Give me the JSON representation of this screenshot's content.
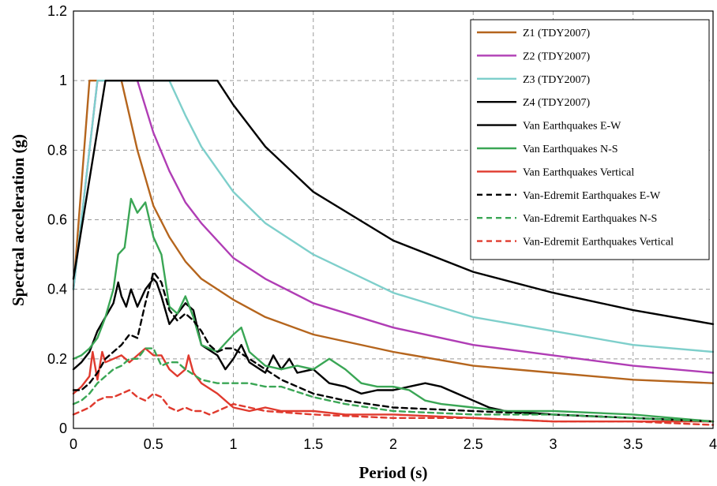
{
  "chart_data": {
    "type": "line",
    "xlabel": "Period (s)",
    "ylabel": "Spectral acceleration (g)",
    "xlim": [
      0,
      4
    ],
    "ylim": [
      0,
      1.2
    ],
    "xticks": [
      "0",
      "0.5",
      "1",
      "1.5",
      "2",
      "2.5",
      "3",
      "3.5",
      "4"
    ],
    "yticks": [
      "0",
      "0.2",
      "0.4",
      "0.6",
      "0.8",
      "1",
      "1.2"
    ],
    "grid": true,
    "legend_position": "top-right",
    "series": [
      {
        "name": "Z1 (TDY2007)",
        "color": "#b5651d",
        "dash": "solid",
        "x": [
          0,
          0.1,
          0.3,
          0.4,
          0.5,
          0.6,
          0.7,
          0.8,
          1.0,
          1.2,
          1.5,
          2.0,
          2.5,
          3.0,
          3.5,
          4.0
        ],
        "y": [
          0.4,
          1.0,
          1.0,
          0.8,
          0.64,
          0.55,
          0.48,
          0.43,
          0.37,
          0.32,
          0.27,
          0.22,
          0.18,
          0.16,
          0.14,
          0.13
        ]
      },
      {
        "name": "Z2 (TDY2007)",
        "color": "#b03db5",
        "dash": "solid",
        "x": [
          0,
          0.15,
          0.4,
          0.5,
          0.6,
          0.7,
          0.8,
          1.0,
          1.2,
          1.5,
          2.0,
          2.5,
          3.0,
          3.5,
          4.0
        ],
        "y": [
          0.4,
          1.0,
          1.0,
          0.85,
          0.74,
          0.65,
          0.59,
          0.49,
          0.43,
          0.36,
          0.29,
          0.24,
          0.21,
          0.18,
          0.16
        ]
      },
      {
        "name": "Z3 (TDY2007)",
        "color": "#7ecfcb",
        "dash": "solid",
        "x": [
          0,
          0.15,
          0.6,
          0.7,
          0.8,
          1.0,
          1.2,
          1.5,
          2.0,
          2.5,
          3.0,
          3.5,
          4.0
        ],
        "y": [
          0.4,
          1.0,
          1.0,
          0.9,
          0.81,
          0.68,
          0.59,
          0.5,
          0.39,
          0.32,
          0.28,
          0.24,
          0.22
        ]
      },
      {
        "name": "Z4 (TDY2007)",
        "color": "#000000",
        "dash": "solid",
        "x": [
          0,
          0.2,
          0.9,
          1.0,
          1.2,
          1.5,
          2.0,
          2.5,
          3.0,
          3.5,
          4.0
        ],
        "y": [
          0.43,
          1.0,
          1.0,
          0.93,
          0.81,
          0.68,
          0.54,
          0.45,
          0.39,
          0.34,
          0.3
        ]
      },
      {
        "name": "Van Earthquakes E-W",
        "color": "#000000",
        "dash": "solid",
        "x": [
          0,
          0.05,
          0.1,
          0.15,
          0.2,
          0.25,
          0.28,
          0.3,
          0.33,
          0.36,
          0.4,
          0.45,
          0.5,
          0.52,
          0.55,
          0.6,
          0.65,
          0.7,
          0.75,
          0.8,
          0.9,
          0.95,
          1.0,
          1.05,
          1.1,
          1.2,
          1.25,
          1.3,
          1.35,
          1.4,
          1.5,
          1.6,
          1.7,
          1.8,
          1.9,
          2.0,
          2.1,
          2.2,
          2.3,
          2.4,
          2.5,
          2.6,
          2.7,
          3.0,
          3.5,
          4.0
        ],
        "y": [
          0.17,
          0.19,
          0.22,
          0.28,
          0.32,
          0.36,
          0.42,
          0.38,
          0.35,
          0.4,
          0.35,
          0.4,
          0.43,
          0.42,
          0.38,
          0.3,
          0.33,
          0.36,
          0.34,
          0.24,
          0.21,
          0.17,
          0.2,
          0.24,
          0.19,
          0.16,
          0.21,
          0.17,
          0.2,
          0.16,
          0.17,
          0.13,
          0.12,
          0.1,
          0.11,
          0.11,
          0.12,
          0.13,
          0.12,
          0.1,
          0.08,
          0.06,
          0.05,
          0.04,
          0.03,
          0.02
        ]
      },
      {
        "name": "Van Earthquakes N-S",
        "color": "#3aa655",
        "dash": "solid",
        "x": [
          0,
          0.05,
          0.1,
          0.15,
          0.2,
          0.25,
          0.28,
          0.32,
          0.36,
          0.4,
          0.45,
          0.5,
          0.55,
          0.6,
          0.65,
          0.7,
          0.75,
          0.8,
          0.9,
          1.0,
          1.05,
          1.1,
          1.2,
          1.3,
          1.4,
          1.5,
          1.6,
          1.7,
          1.8,
          1.9,
          2.0,
          2.1,
          2.2,
          2.3,
          2.5,
          2.7,
          2.9,
          3.0,
          3.5,
          4.0
        ],
        "y": [
          0.2,
          0.21,
          0.23,
          0.26,
          0.32,
          0.4,
          0.5,
          0.52,
          0.66,
          0.62,
          0.65,
          0.55,
          0.5,
          0.35,
          0.33,
          0.38,
          0.32,
          0.24,
          0.22,
          0.27,
          0.29,
          0.22,
          0.18,
          0.17,
          0.18,
          0.17,
          0.2,
          0.17,
          0.13,
          0.12,
          0.12,
          0.11,
          0.08,
          0.07,
          0.06,
          0.05,
          0.05,
          0.05,
          0.04,
          0.02
        ]
      },
      {
        "name": "Van Earthquakes Vertical",
        "color": "#e03a2e",
        "dash": "solid",
        "x": [
          0,
          0.05,
          0.1,
          0.12,
          0.15,
          0.18,
          0.2,
          0.25,
          0.3,
          0.35,
          0.4,
          0.45,
          0.5,
          0.55,
          0.6,
          0.65,
          0.7,
          0.72,
          0.75,
          0.8,
          0.9,
          1.0,
          1.1,
          1.2,
          1.3,
          1.4,
          1.5,
          1.7,
          2.0,
          2.5,
          3.0,
          4.0
        ],
        "y": [
          0.1,
          0.12,
          0.15,
          0.22,
          0.14,
          0.22,
          0.19,
          0.2,
          0.21,
          0.19,
          0.21,
          0.23,
          0.21,
          0.21,
          0.17,
          0.15,
          0.17,
          0.21,
          0.16,
          0.13,
          0.1,
          0.06,
          0.05,
          0.06,
          0.05,
          0.05,
          0.05,
          0.04,
          0.04,
          0.03,
          0.02,
          0.02
        ]
      },
      {
        "name": "Van-Edremit Earthquakes E-W",
        "color": "#000000",
        "dash": "dashed",
        "x": [
          0,
          0.05,
          0.1,
          0.15,
          0.2,
          0.25,
          0.3,
          0.35,
          0.4,
          0.45,
          0.5,
          0.55,
          0.6,
          0.65,
          0.7,
          0.75,
          0.8,
          0.85,
          0.9,
          0.95,
          1.0,
          1.1,
          1.2,
          1.3,
          1.5,
          1.7,
          2.0,
          2.5,
          3.0,
          3.5,
          4.0
        ],
        "y": [
          0.11,
          0.11,
          0.13,
          0.16,
          0.2,
          0.22,
          0.24,
          0.27,
          0.26,
          0.36,
          0.45,
          0.42,
          0.34,
          0.31,
          0.33,
          0.31,
          0.28,
          0.24,
          0.22,
          0.23,
          0.23,
          0.2,
          0.17,
          0.14,
          0.1,
          0.08,
          0.06,
          0.05,
          0.04,
          0.03,
          0.02
        ]
      },
      {
        "name": "Van-Edremit Earthquakes N-S",
        "color": "#3aa655",
        "dash": "dashed",
        "x": [
          0,
          0.05,
          0.1,
          0.15,
          0.2,
          0.25,
          0.3,
          0.35,
          0.4,
          0.45,
          0.5,
          0.55,
          0.6,
          0.65,
          0.7,
          0.8,
          0.9,
          1.0,
          1.1,
          1.2,
          1.3,
          1.5,
          1.7,
          2.0,
          2.5,
          3.0,
          3.5,
          4.0
        ],
        "y": [
          0.07,
          0.08,
          0.1,
          0.13,
          0.15,
          0.17,
          0.18,
          0.2,
          0.2,
          0.23,
          0.23,
          0.18,
          0.19,
          0.19,
          0.17,
          0.14,
          0.13,
          0.13,
          0.13,
          0.12,
          0.12,
          0.09,
          0.07,
          0.05,
          0.04,
          0.04,
          0.03,
          0.02
        ]
      },
      {
        "name": "Van-Edremit Earthquakes Vertical",
        "color": "#e03a2e",
        "dash": "dashed",
        "x": [
          0,
          0.05,
          0.1,
          0.15,
          0.2,
          0.25,
          0.3,
          0.35,
          0.4,
          0.45,
          0.5,
          0.55,
          0.6,
          0.65,
          0.7,
          0.75,
          0.8,
          0.85,
          0.9,
          1.0,
          1.1,
          1.2,
          1.5,
          2.0,
          2.5,
          3.0,
          3.5,
          4.0
        ],
        "y": [
          0.04,
          0.05,
          0.06,
          0.08,
          0.09,
          0.09,
          0.1,
          0.11,
          0.09,
          0.08,
          0.1,
          0.09,
          0.06,
          0.05,
          0.06,
          0.05,
          0.05,
          0.04,
          0.05,
          0.07,
          0.06,
          0.05,
          0.04,
          0.03,
          0.03,
          0.02,
          0.02,
          0.01
        ]
      }
    ]
  }
}
